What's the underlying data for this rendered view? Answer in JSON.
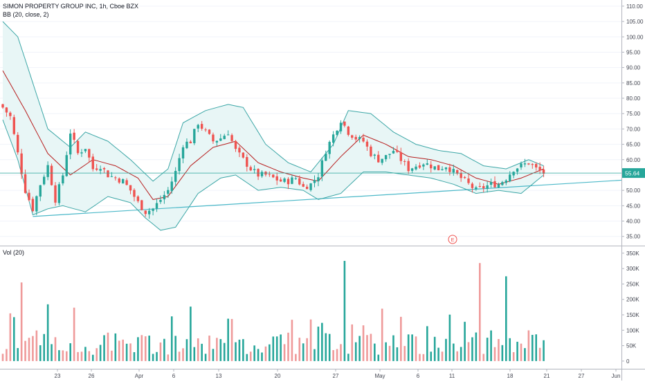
{
  "symbol_label": "SIMON PROPERTY GROUP INC, 1h, Cboe BZX",
  "indicator_label": "BB (20, close, 2)",
  "volume_label": "Vol (20)",
  "last_price_label": "55.64",
  "earnings_marker": "E",
  "colors": {
    "up": "#26a69a",
    "down": "#ef5350",
    "band": "#3ba6a6",
    "basis": "#b71c1c",
    "fill": "#e8f6f6",
    "trend": "#4bb8c8",
    "price_tag": "#26a69a",
    "vol_up": "#26a69a",
    "vol_down": "#ef9a9a"
  },
  "chart_data": [
    {
      "type": "candlestick",
      "title": "SIMON PROPERTY GROUP INC, 1h, Cboe BZX",
      "ylim": [
        32,
        112
      ],
      "y_ticks": [
        "35.00",
        "40.00",
        "45.00",
        "50.00",
        "55.00",
        "60.00",
        "65.00",
        "70.00",
        "75.00",
        "80.00",
        "85.00",
        "90.00",
        "95.00",
        "100.00",
        "105.00",
        "110.00"
      ],
      "x_ticks": [
        "23",
        "26",
        "Apr",
        "6",
        "13",
        "20",
        "27",
        "May",
        "6",
        "11",
        "18",
        "21",
        "27",
        "Jun"
      ],
      "last_price": 55.64,
      "close_path": [
        [
          0,
          77
        ],
        [
          2,
          74
        ],
        [
          4,
          62
        ],
        [
          6,
          50
        ],
        [
          8,
          44
        ],
        [
          10,
          52
        ],
        [
          12,
          58
        ],
        [
          14,
          47
        ],
        [
          16,
          55
        ],
        [
          18,
          69
        ],
        [
          20,
          62
        ],
        [
          22,
          64
        ],
        [
          24,
          57
        ],
        [
          26,
          58
        ],
        [
          28,
          55
        ],
        [
          30,
          54
        ],
        [
          32,
          53
        ],
        [
          34,
          50
        ],
        [
          36,
          46
        ],
        [
          38,
          43
        ],
        [
          40,
          44
        ],
        [
          42,
          47
        ],
        [
          44,
          50
        ],
        [
          46,
          56
        ],
        [
          48,
          65
        ],
        [
          50,
          66
        ],
        [
          52,
          72
        ],
        [
          54,
          69
        ],
        [
          56,
          66
        ],
        [
          58,
          67
        ],
        [
          60,
          69
        ],
        [
          62,
          63
        ],
        [
          64,
          60
        ],
        [
          66,
          57
        ],
        [
          68,
          55
        ],
        [
          70,
          55
        ],
        [
          72,
          54
        ],
        [
          74,
          53
        ],
        [
          76,
          53
        ],
        [
          78,
          54
        ],
        [
          80,
          51
        ],
        [
          82,
          52
        ],
        [
          84,
          55
        ],
        [
          86,
          63
        ],
        [
          88,
          68
        ],
        [
          90,
          73
        ],
        [
          92,
          69
        ],
        [
          94,
          67
        ],
        [
          96,
          66
        ],
        [
          98,
          62
        ],
        [
          100,
          60
        ],
        [
          102,
          61
        ],
        [
          104,
          63
        ],
        [
          106,
          60
        ],
        [
          108,
          57
        ],
        [
          110,
          58
        ],
        [
          112,
          59
        ],
        [
          114,
          58
        ],
        [
          116,
          57
        ],
        [
          118,
          58
        ],
        [
          120,
          56
        ],
        [
          122,
          54
        ],
        [
          124,
          52
        ],
        [
          126,
          50
        ],
        [
          128,
          51
        ],
        [
          130,
          52
        ],
        [
          132,
          52
        ],
        [
          134,
          54
        ],
        [
          136,
          57
        ],
        [
          138,
          58
        ],
        [
          140,
          59
        ],
        [
          142,
          57
        ],
        [
          144,
          55.64
        ]
      ],
      "bollinger": {
        "basis": [
          [
            0,
            89
          ],
          [
            6,
            76
          ],
          [
            12,
            62
          ],
          [
            18,
            55
          ],
          [
            24,
            60
          ],
          [
            30,
            58
          ],
          [
            36,
            54
          ],
          [
            40,
            47
          ],
          [
            44,
            48
          ],
          [
            50,
            58
          ],
          [
            56,
            64
          ],
          [
            62,
            66
          ],
          [
            68,
            59
          ],
          [
            74,
            56
          ],
          [
            80,
            54
          ],
          [
            84,
            53
          ],
          [
            90,
            61
          ],
          [
            96,
            68
          ],
          [
            102,
            65
          ],
          [
            108,
            61
          ],
          [
            114,
            60
          ],
          [
            120,
            58
          ],
          [
            126,
            54
          ],
          [
            132,
            52
          ],
          [
            138,
            54
          ],
          [
            144,
            57
          ]
        ],
        "upper": [
          [
            0,
            105
          ],
          [
            4,
            100
          ],
          [
            8,
            85
          ],
          [
            12,
            70
          ],
          [
            18,
            64
          ],
          [
            22,
            69
          ],
          [
            28,
            66
          ],
          [
            34,
            60
          ],
          [
            40,
            53
          ],
          [
            44,
            57
          ],
          [
            48,
            72
          ],
          [
            54,
            76
          ],
          [
            60,
            78
          ],
          [
            64,
            77
          ],
          [
            70,
            65
          ],
          [
            76,
            59
          ],
          [
            82,
            56
          ],
          [
            88,
            65
          ],
          [
            92,
            76
          ],
          [
            98,
            75
          ],
          [
            104,
            69
          ],
          [
            110,
            65
          ],
          [
            116,
            63
          ],
          [
            122,
            62
          ],
          [
            128,
            58
          ],
          [
            134,
            57
          ],
          [
            140,
            60
          ],
          [
            144,
            58
          ]
        ],
        "lower": [
          [
            0,
            73
          ],
          [
            4,
            60
          ],
          [
            8,
            42
          ],
          [
            12,
            44
          ],
          [
            16,
            45
          ],
          [
            22,
            43
          ],
          [
            28,
            48
          ],
          [
            34,
            46
          ],
          [
            38,
            41
          ],
          [
            42,
            37
          ],
          [
            46,
            38
          ],
          [
            52,
            49
          ],
          [
            58,
            54
          ],
          [
            62,
            55
          ],
          [
            68,
            50
          ],
          [
            74,
            51
          ],
          [
            80,
            50
          ],
          [
            84,
            47
          ],
          [
            90,
            49
          ],
          [
            96,
            56
          ],
          [
            102,
            56
          ],
          [
            108,
            55
          ],
          [
            114,
            54
          ],
          [
            120,
            52
          ],
          [
            126,
            49
          ],
          [
            132,
            50
          ],
          [
            138,
            49
          ],
          [
            144,
            55
          ]
        ]
      },
      "trendline": [
        [
          8,
          41.5
        ],
        [
          154,
          52.5
        ]
      ],
      "annotation": "E"
    },
    {
      "type": "bar",
      "title": "Vol (20)",
      "ylim": [
        -25,
        370
      ],
      "y_ticks": [
        "0",
        "50K",
        "100K",
        "150K",
        "200K",
        "250K",
        "300K",
        "350K"
      ],
      "notable_bars": [
        {
          "index": 5,
          "value": 255,
          "dir": "down"
        },
        {
          "index": 45,
          "value": 145,
          "dir": "up"
        },
        {
          "index": 82,
          "value": 135,
          "dir": "down"
        },
        {
          "index": 91,
          "value": 325,
          "dir": "up"
        },
        {
          "index": 101,
          "value": 170,
          "dir": "down"
        },
        {
          "index": 127,
          "value": 318,
          "dir": "down"
        },
        {
          "index": 134,
          "value": 275,
          "dir": "up"
        }
      ]
    }
  ]
}
